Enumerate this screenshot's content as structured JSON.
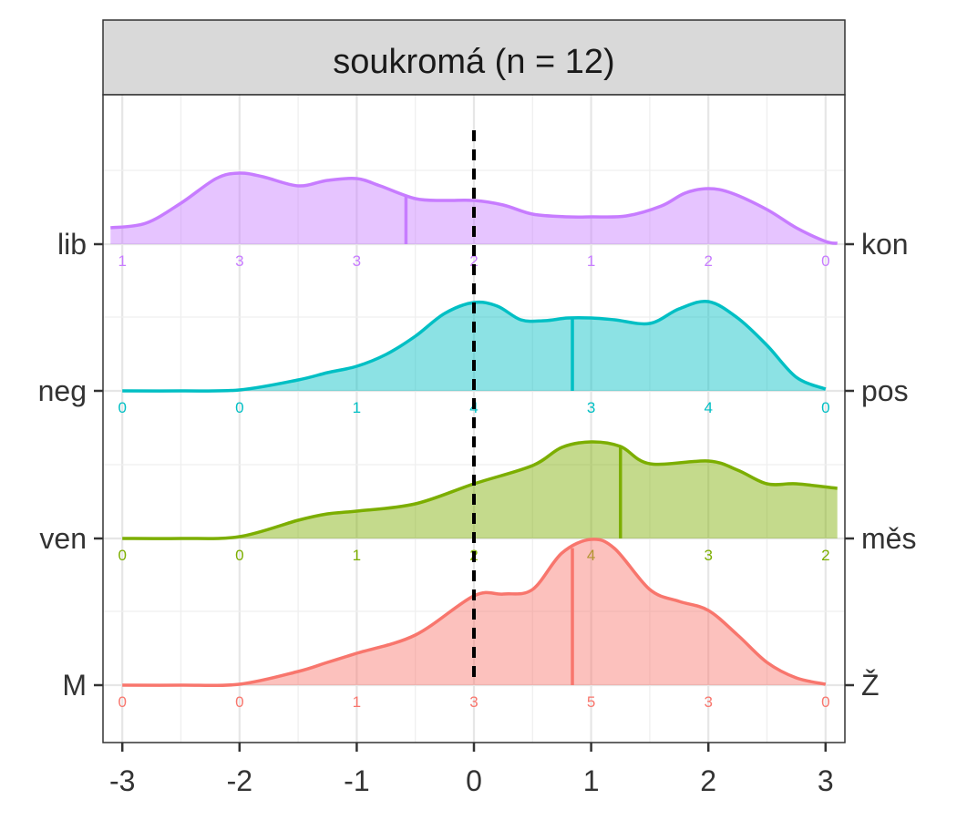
{
  "chart_data": {
    "type": "area",
    "title": "soukromá (n = 12)",
    "xlabel": "",
    "ylabel": "",
    "xlim": [
      -3.1,
      3.1
    ],
    "x_ticks": [
      -3,
      -2,
      -1,
      0,
      1,
      2,
      3
    ],
    "x_tick_labels": [
      "-3",
      "-2",
      "-1",
      "0",
      "1",
      "2",
      "3"
    ],
    "grid": true,
    "reference_line_x": 0,
    "count_positions": [
      -3,
      -2,
      -1,
      0,
      1,
      2,
      3
    ],
    "series": [
      {
        "name": "lib–kon",
        "left_label": "lib",
        "right_label": "kon",
        "color": "#C77CFF",
        "mean": -0.58,
        "counts": [
          1,
          3,
          3,
          2,
          1,
          2,
          0
        ],
        "density_x": [
          -3.1,
          -2.8,
          -2.5,
          -2.2,
          -2.0,
          -1.8,
          -1.5,
          -1.25,
          -1.0,
          -0.8,
          -0.5,
          -0.25,
          0.0,
          0.25,
          0.5,
          0.8,
          1.0,
          1.3,
          1.6,
          1.8,
          2.0,
          2.2,
          2.5,
          2.75,
          3.0,
          3.1
        ],
        "density_y": [
          0.18,
          0.23,
          0.45,
          0.72,
          0.78,
          0.74,
          0.64,
          0.7,
          0.72,
          0.64,
          0.5,
          0.48,
          0.48,
          0.43,
          0.33,
          0.3,
          0.3,
          0.31,
          0.42,
          0.56,
          0.61,
          0.56,
          0.38,
          0.18,
          0.03,
          0.01
        ]
      },
      {
        "name": "neg–pos",
        "left_label": "neg",
        "right_label": "pos",
        "color": "#00BFC4",
        "mean": 0.84,
        "counts": [
          0,
          0,
          1,
          4,
          3,
          4,
          0
        ],
        "density_x": [
          -3.0,
          -2.5,
          -2.0,
          -1.5,
          -1.25,
          -1.0,
          -0.75,
          -0.5,
          -0.25,
          0.0,
          0.2,
          0.4,
          0.6,
          0.8,
          1.0,
          1.2,
          1.5,
          1.75,
          2.0,
          2.25,
          2.5,
          2.75,
          3.0
        ],
        "density_y": [
          0.0,
          0.0,
          0.01,
          0.12,
          0.2,
          0.27,
          0.4,
          0.6,
          0.85,
          0.97,
          0.93,
          0.78,
          0.77,
          0.8,
          0.8,
          0.78,
          0.74,
          0.9,
          0.98,
          0.8,
          0.5,
          0.15,
          0.02
        ]
      },
      {
        "name": "ven–měs",
        "left_label": "ven",
        "right_label": "měs",
        "color": "#7CAE00",
        "mean": 1.25,
        "counts": [
          0,
          0,
          1,
          2,
          4,
          3,
          2
        ],
        "density_x": [
          -3.0,
          -2.5,
          -2.0,
          -1.5,
          -1.25,
          -1.0,
          -0.5,
          0.0,
          0.5,
          0.75,
          1.0,
          1.25,
          1.5,
          2.0,
          2.25,
          2.5,
          2.75,
          3.1
        ],
        "density_y": [
          0.0,
          0.0,
          0.02,
          0.2,
          0.27,
          0.3,
          0.38,
          0.6,
          0.8,
          1.0,
          1.06,
          1.01,
          0.82,
          0.85,
          0.75,
          0.6,
          0.6,
          0.55
        ]
      },
      {
        "name": "M–Ž",
        "left_label": "M",
        "right_label": "Ž",
        "color": "#F8766D",
        "mean": 0.84,
        "counts": [
          0,
          0,
          1,
          3,
          5,
          3,
          0
        ],
        "density_x": [
          -3.0,
          -2.5,
          -2.0,
          -1.5,
          -1.25,
          -1.0,
          -0.5,
          0.0,
          0.25,
          0.5,
          0.75,
          1.0,
          1.2,
          1.5,
          1.75,
          2.0,
          2.25,
          2.5,
          2.75,
          3.0
        ],
        "density_y": [
          0.0,
          0.0,
          0.01,
          0.15,
          0.25,
          0.35,
          0.55,
          0.98,
          1.0,
          1.05,
          1.45,
          1.6,
          1.5,
          1.05,
          0.92,
          0.82,
          0.55,
          0.25,
          0.08,
          0.01
        ]
      }
    ]
  }
}
